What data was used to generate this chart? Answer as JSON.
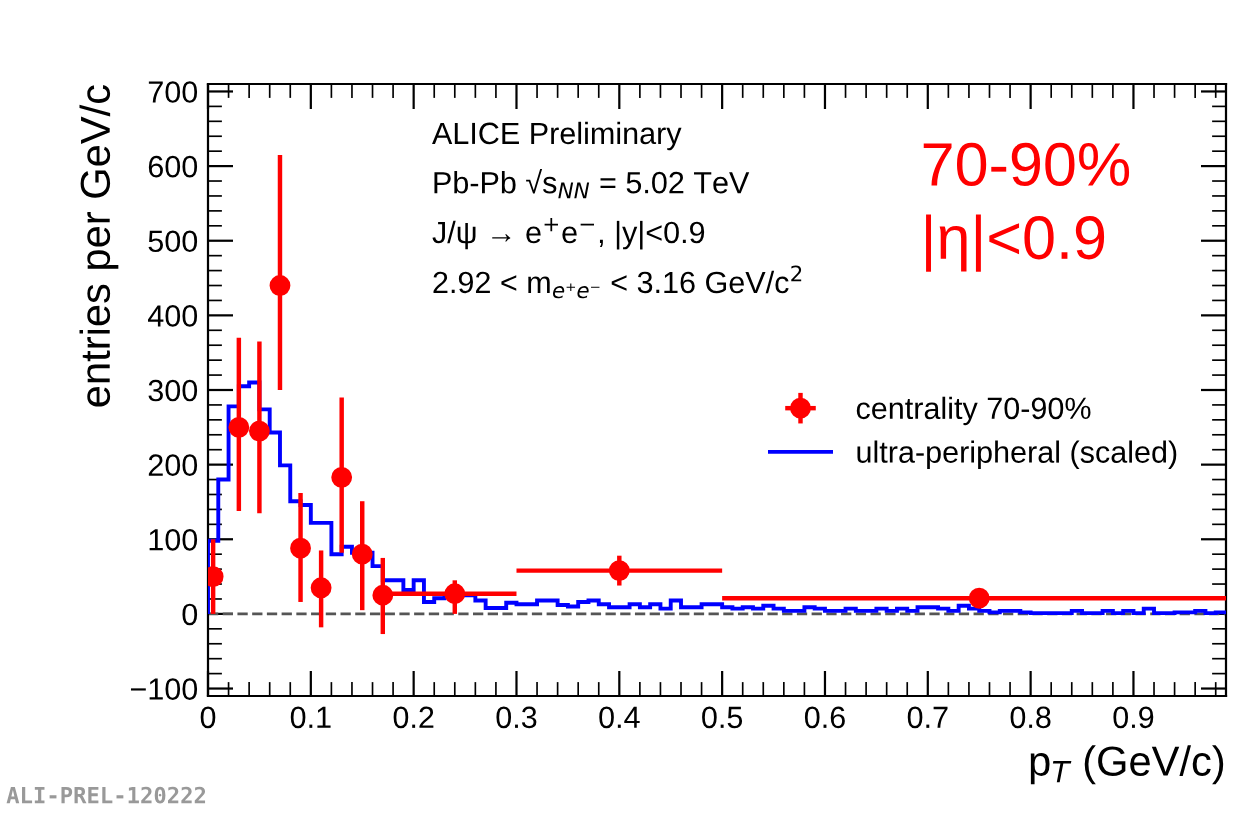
{
  "chart_data": {
    "type": "scatter",
    "xlabel": "p$_{T}$ (GeV/c)",
    "ylabel": "entries per GeV/c",
    "xlim": [
      0,
      0.99
    ],
    "ylim": [
      -110,
      710
    ],
    "xticks": [
      0,
      0.1,
      0.2,
      0.3,
      0.4,
      0.5,
      0.6,
      0.7,
      0.8,
      0.9
    ],
    "yticks": [
      -100,
      0,
      100,
      200,
      300,
      400,
      500,
      600,
      700
    ],
    "grid": false,
    "legend": "right",
    "marker": "circle",
    "ref_lines": [
      {
        "axis": "y",
        "value": 0,
        "color": "#555555",
        "line_style": "dashed"
      }
    ],
    "series": [
      {
        "name": "centrality 70-90%",
        "type": "scatter",
        "color": "#ff0000",
        "x": [
          0.005,
          0.03,
          0.05,
          0.07,
          0.09,
          0.11,
          0.13,
          0.15,
          0.17,
          0.24,
          0.4,
          0.75
        ],
        "values": [
          50,
          250,
          245,
          440,
          88,
          35,
          183,
          80,
          25,
          27,
          58,
          21
        ],
        "errors": [
          [
            0,
            100
          ],
          [
            138,
            370
          ],
          [
            135,
            365
          ],
          [
            300,
            615
          ],
          [
            16,
            162
          ],
          [
            -18,
            85
          ],
          [
            82,
            290
          ],
          [
            5,
            151
          ],
          [
            -27,
            75
          ],
          [
            0,
            45
          ],
          [
            38,
            78
          ],
          [
            13,
            29
          ]
        ],
        "xerrors": [
          null,
          null,
          null,
          null,
          null,
          null,
          null,
          null,
          null,
          [
            0.17,
            0.3
          ],
          [
            0.3,
            0.5
          ],
          [
            0.5,
            0.99
          ]
        ]
      },
      {
        "name": "ultra-peripheral (scaled)",
        "type": "histogram",
        "color": "#0000ff",
        "bins": [
          0,
          0.01,
          0.02,
          0.03,
          0.04,
          0.05,
          0.06,
          0.07,
          0.08,
          0.09,
          0.1,
          0.11,
          0.12,
          0.13,
          0.14,
          0.15,
          0.16,
          0.17,
          0.18,
          0.19,
          0.2,
          0.21,
          0.22,
          0.23,
          0.24,
          0.25,
          0.26,
          0.27,
          0.28,
          0.29,
          0.3,
          0.31,
          0.32,
          0.33,
          0.34,
          0.35,
          0.36,
          0.37,
          0.38,
          0.39,
          0.4,
          0.41,
          0.42,
          0.43,
          0.44,
          0.45,
          0.46,
          0.47,
          0.48,
          0.49,
          0.5,
          0.51,
          0.52,
          0.53,
          0.54,
          0.55,
          0.56,
          0.57,
          0.58,
          0.59,
          0.6,
          0.61,
          0.62,
          0.63,
          0.64,
          0.65,
          0.66,
          0.67,
          0.68,
          0.69,
          0.7,
          0.71,
          0.72,
          0.73,
          0.74,
          0.75,
          0.76,
          0.77,
          0.78,
          0.79,
          0.8,
          0.81,
          0.82,
          0.83,
          0.84,
          0.85,
          0.86,
          0.87,
          0.88,
          0.89,
          0.9,
          0.91,
          0.92,
          0.93,
          0.94,
          0.95,
          0.96,
          0.97,
          0.98,
          0.99
        ],
        "values": [
          98,
          180,
          278,
          305,
          310,
          274,
          243,
          199,
          151,
          146,
          122,
          122,
          80,
          90,
          82,
          82,
          64,
          45,
          45,
          32,
          45,
          16,
          21,
          26,
          26,
          25,
          18,
          8,
          8,
          15,
          13,
          13,
          18,
          18,
          12,
          10,
          16,
          18,
          13,
          9,
          9,
          13,
          9,
          13,
          7,
          18,
          9,
          9,
          13,
          13,
          9,
          7,
          9,
          7,
          11,
          7,
          4,
          4,
          9,
          7,
          4,
          4,
          7,
          4,
          4,
          7,
          4,
          7,
          4,
          9,
          9,
          7,
          4,
          11,
          7,
          4,
          2,
          4,
          4,
          2,
          1,
          1,
          1,
          1,
          4,
          1,
          1,
          4,
          1,
          4,
          1,
          7,
          1,
          1,
          2,
          2,
          4,
          1,
          2
        ]
      }
    ],
    "annotations": [
      "ALICE Preliminary",
      "Pb-Pb √s$_{NN}$ = 5.02 TeV",
      "J/ψ → e$^{+}$e$^{−}$, |y|<0.9",
      "2.92 < m$_{e⁺e⁻}$ < 3.16 GeV/c$^{2}$",
      "70-90%",
      "|η|<0.9",
      "ALI-PREL-120222"
    ]
  }
}
